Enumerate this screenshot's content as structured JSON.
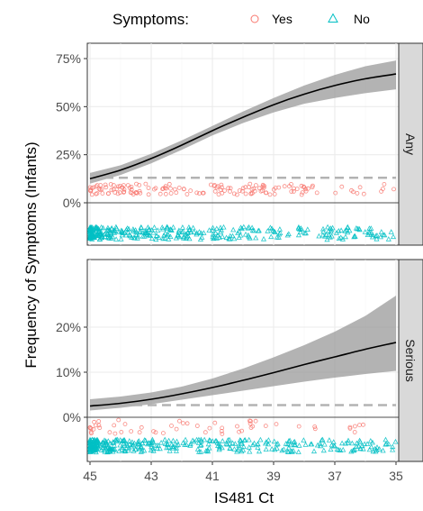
{
  "legend": {
    "title": "Symptoms:",
    "items": [
      {
        "label": "Yes",
        "color": "#F8766D",
        "shape": "circle"
      },
      {
        "label": "No",
        "color": "#00BFC4",
        "shape": "triangle"
      }
    ]
  },
  "chart_data": {
    "type": "line",
    "xlabel": "IS481 Ct",
    "ylabel": "Frequency of Symptoms (Infants)",
    "x_reversed": true,
    "xlim": [
      45,
      35
    ],
    "x_ticks": [
      "45",
      "43",
      "41",
      "39",
      "37",
      "35"
    ],
    "grid": true,
    "legend_position": "top",
    "panels": [
      {
        "strip": "Any",
        "ylim": [
          0,
          0.75
        ],
        "y_ticks": [
          "0%",
          "25%",
          "50%",
          "75%"
        ],
        "reference_line": 0.13,
        "x": [
          45,
          44,
          43,
          42,
          41,
          40,
          39,
          38,
          37,
          36,
          35
        ],
        "fit": [
          0.125,
          0.17,
          0.23,
          0.3,
          0.375,
          0.445,
          0.51,
          0.565,
          0.61,
          0.645,
          0.67
        ],
        "lower": [
          0.1,
          0.145,
          0.205,
          0.275,
          0.35,
          0.415,
          0.47,
          0.515,
          0.545,
          0.57,
          0.59
        ],
        "upper": [
          0.155,
          0.195,
          0.255,
          0.325,
          0.4,
          0.475,
          0.545,
          0.61,
          0.665,
          0.71,
          0.74
        ]
      },
      {
        "strip": "Serious",
        "ylim": [
          0,
          0.28
        ],
        "y_ticks": [
          "0%",
          "10%",
          "20%"
        ],
        "reference_line": 0.027,
        "x": [
          45,
          44,
          43,
          42,
          41,
          40,
          39,
          38,
          37,
          36,
          35
        ],
        "fit": [
          0.025,
          0.031,
          0.04,
          0.052,
          0.066,
          0.082,
          0.099,
          0.117,
          0.134,
          0.151,
          0.166
        ],
        "lower": [
          0.015,
          0.021,
          0.029,
          0.039,
          0.049,
          0.059,
          0.069,
          0.079,
          0.088,
          0.096,
          0.103
        ],
        "upper": [
          0.04,
          0.046,
          0.055,
          0.068,
          0.086,
          0.108,
          0.133,
          0.16,
          0.19,
          0.225,
          0.27
        ]
      }
    ]
  }
}
